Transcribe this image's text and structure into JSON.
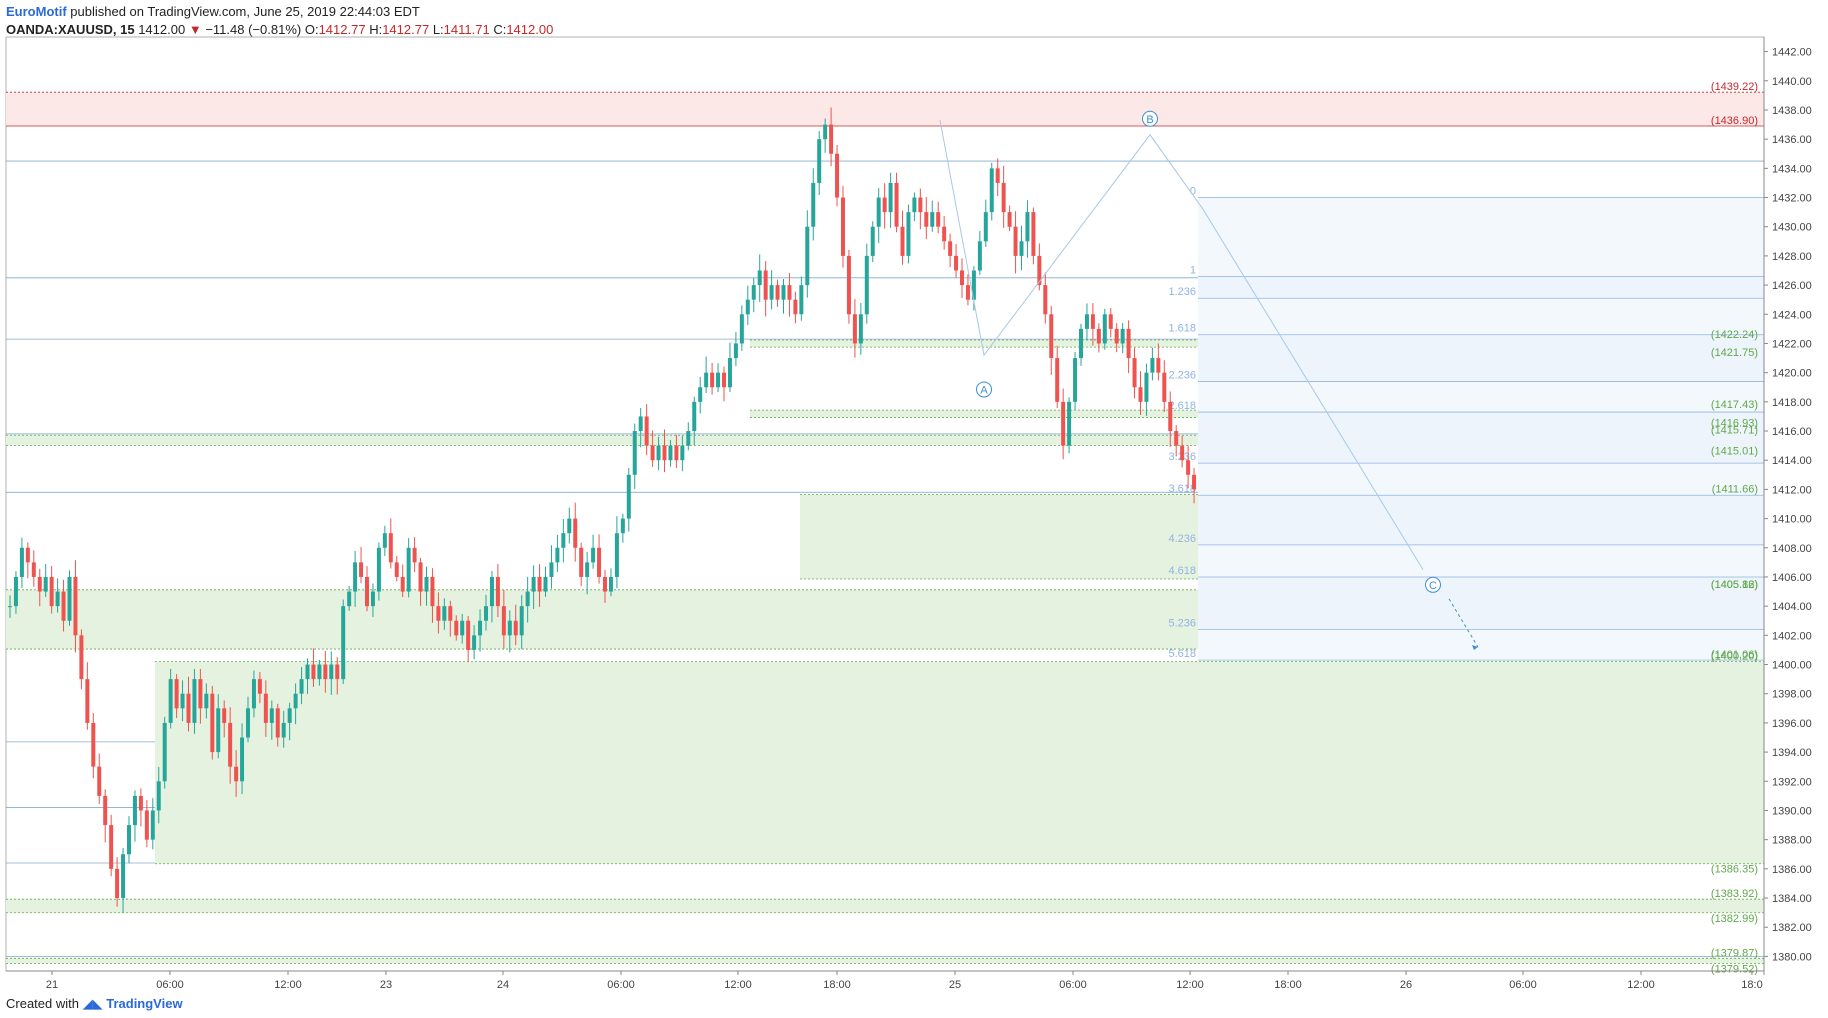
{
  "header": {
    "brand": "EuroMotif",
    "published": "published on TradingView.com, June 25, 2019 22:44:03 EDT",
    "symbol": "OANDA:XAUUSD, 15",
    "last": "1412.00",
    "change": "−11.48 (−0.81%)",
    "o_label": "O:",
    "o": "1412.77",
    "h_label": "H:",
    "h": "1412.77",
    "l_label": "L:",
    "l": "1411.71",
    "c_label": "C:",
    "c": "1412.00"
  },
  "footer": {
    "created": "Created with",
    "brand": "TradingView"
  },
  "colors": {
    "up": "#26a69a",
    "down": "#ef5350",
    "red_level": "#c62828",
    "green_level": "#5fa84a",
    "fib": "#8eb4e3",
    "wave": "#3d8fd1"
  },
  "chart_data": {
    "type": "candlestick",
    "ylim": [
      1379,
      1443
    ],
    "x_ticks": [
      "21",
      "06:00",
      "12:00",
      "23",
      "24",
      "06:00",
      "12:00",
      "18:00",
      "25",
      "06:00",
      "12:00",
      "18:00",
      "26",
      "06:00",
      "12:00",
      "18:0"
    ],
    "y_ticks": [
      "1442.00",
      "1440.00",
      "1438.00",
      "1436.00",
      "1434.00",
      "1432.00",
      "1430.00",
      "1428.00",
      "1426.00",
      "1424.00",
      "1422.00",
      "1420.00",
      "1418.00",
      "1416.00",
      "1414.00",
      "1412.00",
      "1410.00",
      "1408.00",
      "1406.00",
      "1404.00",
      "1402.00",
      "1400.00",
      "1398.00",
      "1396.00",
      "1394.00",
      "1392.00",
      "1390.00",
      "1388.00",
      "1386.00",
      "1384.00",
      "1382.00",
      "1380.00"
    ],
    "blue_lines": [
      1434.5,
      1426.5,
      1422.3,
      1415.8,
      1411.8,
      1401.1,
      1394.7,
      1390.2,
      1386.4,
      1380.0
    ],
    "red_zone": {
      "top": 1439.22,
      "bottom": 1436.9,
      "labels": [
        "(1439.22)",
        "(1436.90)"
      ]
    },
    "green_labels": [
      {
        "value": 1422.24,
        "label": "(1422.24)"
      },
      {
        "value": 1421.75,
        "label": "(1421.75)"
      },
      {
        "value": 1417.43,
        "label": "(1417.43)"
      },
      {
        "value": 1416.93,
        "label": "(1416.93)"
      },
      {
        "value": 1415.71,
        "label": "(1415.71)"
      },
      {
        "value": 1415.01,
        "label": "(1415.01)"
      },
      {
        "value": 1411.66,
        "label": "(1411.66)"
      },
      {
        "value": 1405.86,
        "label": "(1405.86)"
      },
      {
        "value": 1405.12,
        "label": "(1405.12)"
      },
      {
        "value": 1401.06,
        "label": "(1401.06)"
      },
      {
        "value": 1400.2,
        "label": "(1400.20)"
      },
      {
        "value": 1386.35,
        "label": "(1386.35)"
      },
      {
        "value": 1383.92,
        "label": "(1383.92)"
      },
      {
        "value": 1382.99,
        "label": "(1382.99)"
      },
      {
        "value": 1379.87,
        "label": "(1379.87)"
      },
      {
        "value": 1379.52,
        "label": "(1379.52)"
      }
    ],
    "fib_levels": [
      {
        "label": "0",
        "value": 1432.0
      },
      {
        "label": "1",
        "value": 1426.6
      },
      {
        "label": "1.236",
        "value": 1425.1
      },
      {
        "label": "1.618",
        "value": 1422.6
      },
      {
        "label": "2.236",
        "value": 1419.4
      },
      {
        "label": "2.618",
        "value": 1417.3
      },
      {
        "label": "3.236",
        "value": 1413.8
      },
      {
        "label": "3.618",
        "value": 1411.6
      },
      {
        "label": "4.236",
        "value": 1408.2
      },
      {
        "label": "4.618",
        "value": 1406.0
      },
      {
        "label": "5.236",
        "value": 1402.4
      },
      {
        "label": "5.618",
        "value": 1400.3
      }
    ],
    "waves": [
      {
        "label": "A",
        "value": 1420.7
      },
      {
        "label": "B",
        "value": 1436.3
      },
      {
        "label": "C",
        "value": 1405.6
      }
    ],
    "candles_close": [
      1404,
      1406,
      1408,
      1407,
      1406,
      1405,
      1406,
      1404,
      1405,
      1403,
      1406,
      1402,
      1399,
      1396,
      1393,
      1391,
      1389,
      1386,
      1384,
      1387,
      1389,
      1391,
      1390,
      1388,
      1390,
      1392,
      1396,
      1399,
      1397,
      1398,
      1396,
      1399,
      1397,
      1398,
      1394,
      1397,
      1396,
      1393,
      1392,
      1395,
      1397,
      1399,
      1398,
      1396,
      1397,
      1395,
      1396,
      1397,
      1398,
      1399,
      1400,
      1399,
      1400,
      1399,
      1400,
      1399,
      1404,
      1405,
      1407,
      1406,
      1404,
      1405,
      1408,
      1409,
      1407,
      1406,
      1405,
      1408,
      1407,
      1405,
      1406,
      1404,
      1403,
      1404,
      1403,
      1402,
      1403,
      1401,
      1402,
      1403,
      1404,
      1406,
      1404,
      1402,
      1403,
      1402,
      1404,
      1405,
      1406,
      1405,
      1406,
      1407,
      1408,
      1409,
      1410,
      1408,
      1406,
      1407,
      1408,
      1406,
      1405,
      1406,
      1409,
      1410,
      1413,
      1416,
      1417,
      1415,
      1414,
      1415,
      1414,
      1415,
      1414,
      1415,
      1416,
      1418,
      1419,
      1420,
      1419,
      1420,
      1419,
      1421,
      1422,
      1424,
      1425,
      1426,
      1427,
      1425,
      1426,
      1425,
      1426,
      1425,
      1424,
      1426,
      1430,
      1433,
      1436,
      1437,
      1435,
      1432,
      1428,
      1424,
      1422,
      1424,
      1428,
      1430,
      1432,
      1431,
      1433,
      1430,
      1428,
      1431,
      1432,
      1431,
      1430,
      1431,
      1430,
      1429,
      1428,
      1427,
      1426,
      1425,
      1427,
      1429,
      1431,
      1434,
      1433,
      1431,
      1430,
      1428,
      1429,
      1431,
      1428,
      1426,
      1424,
      1421,
      1418,
      1415,
      1418,
      1421,
      1423,
      1424,
      1423,
      1422,
      1424,
      1423,
      1422,
      1423,
      1421,
      1419,
      1418,
      1420,
      1421,
      1420,
      1418,
      1416,
      1415,
      1414,
      1413,
      1412
    ]
  }
}
